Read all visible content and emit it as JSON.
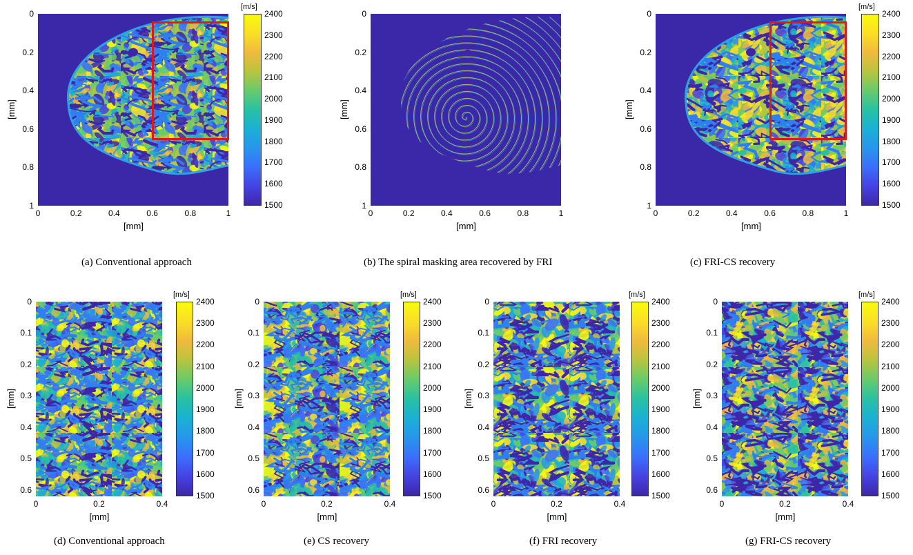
{
  "units": {
    "mm": "[mm]",
    "speed": "[m/s]"
  },
  "colorbar": {
    "min": 1500,
    "max": 2400,
    "ticks": [
      "2400",
      "2300",
      "2200",
      "2100",
      "2000",
      "1900",
      "1800",
      "1700",
      "1600",
      "1500"
    ]
  },
  "top_axis": {
    "xticks": [
      "0",
      "0.2",
      "0.4",
      "0.6",
      "0.8",
      "1"
    ],
    "yticks": [
      "0",
      "0.2",
      "0.4",
      "0.6",
      "0.8",
      "1"
    ]
  },
  "bottom_axis": {
    "xticks": [
      "0",
      "0.2",
      "0.4"
    ],
    "yticks": [
      "0",
      "0.1",
      "0.2",
      "0.3",
      "0.4",
      "0.5",
      "0.6"
    ]
  },
  "captions": {
    "a": "(a) Conventional approach",
    "b": "(b) The spiral masking area recovered by FRI",
    "c": "(c) FRI-CS recovery",
    "d": "(d) Conventional approach",
    "e": "(e) CS recovery",
    "f": "(f) FRI recovery",
    "g": "(g) FRI-CS recovery"
  },
  "colors": {
    "background_blue": "#3b28a8",
    "roi_red": "#e01818"
  },
  "roi": {
    "x_range_mm": [
      0.6,
      1.0
    ],
    "y_range_mm": [
      0.04,
      0.66
    ]
  }
}
